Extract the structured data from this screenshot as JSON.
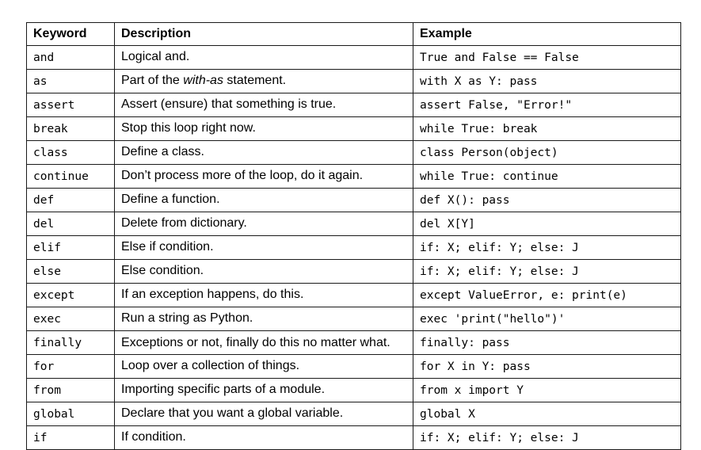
{
  "table": {
    "headers": [
      "Keyword",
      "Description",
      "Example"
    ],
    "rows": [
      {
        "keyword": "and",
        "description": "Logical and.",
        "example": "True and False == False"
      },
      {
        "keyword": "as",
        "description_pre": "Part of the ",
        "description_italic": "with-as",
        "description_post": " statement.",
        "example": "with X as Y: pass"
      },
      {
        "keyword": "assert",
        "description": "Assert (ensure) that something is true.",
        "example": "assert False, \"Error!\""
      },
      {
        "keyword": "break",
        "description": "Stop this loop right now.",
        "example": "while True: break"
      },
      {
        "keyword": "class",
        "description": "Define a class.",
        "example": "class Person(object)"
      },
      {
        "keyword": "continue",
        "description": "Don’t process more of the loop, do it again.",
        "example": "while True: continue"
      },
      {
        "keyword": "def",
        "description": "Define a function.",
        "example": "def X(): pass"
      },
      {
        "keyword": "del",
        "description": "Delete from dictionary.",
        "example": "del X[Y]"
      },
      {
        "keyword": "elif",
        "description": "Else if condition.",
        "example": "if: X; elif: Y; else: J"
      },
      {
        "keyword": "else",
        "description": "Else condition.",
        "example": "if: X; elif: Y; else: J"
      },
      {
        "keyword": "except",
        "description": "If an exception happens, do this.",
        "example": "except ValueError, e: print(e)"
      },
      {
        "keyword": "exec",
        "description": "Run a string as Python.",
        "example": "exec 'print(\"hello\")'"
      },
      {
        "keyword": "finally",
        "description": "Exceptions or not, finally do this no matter what.",
        "example": "finally: pass"
      },
      {
        "keyword": "for",
        "description": "Loop over a collection of things.",
        "example": "for X in Y: pass"
      },
      {
        "keyword": "from",
        "description": "Importing specific parts of a module.",
        "example": "from x import Y"
      },
      {
        "keyword": "global",
        "description": "Declare that you want a global variable.",
        "example": "global X"
      },
      {
        "keyword": "if",
        "description": "If condition.",
        "example": "if: X; elif: Y; else: J"
      }
    ]
  }
}
